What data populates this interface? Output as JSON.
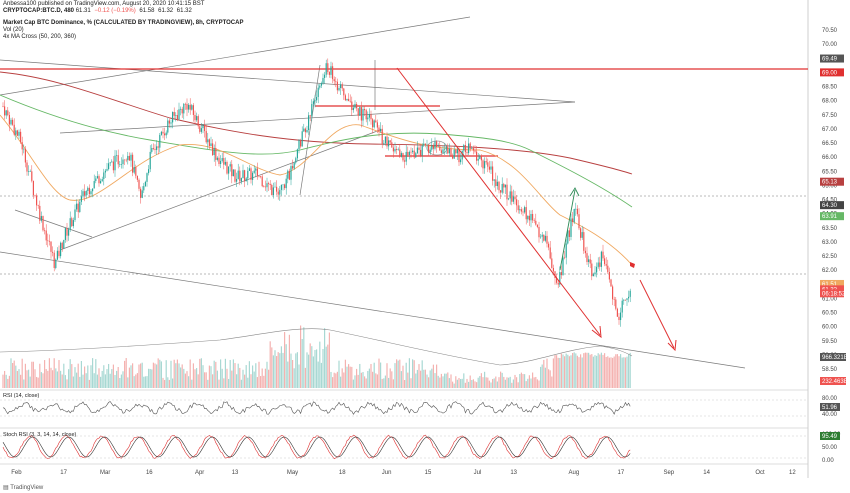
{
  "header": {
    "published": "Anbessa100 published on TradingView.com, August 20, 2020 10:41:15 BST",
    "symbol": "CRYPTOCAP:BTC.D, 480",
    "ohlc": [
      "61.31",
      "−0.12 (−0.19%)",
      "61.58",
      "61.32",
      "61.32"
    ],
    "title": "Market Cap BTC Dominance, % (CALCULATED BY TRADINGVIEW), 8h, CRYPTOCAP",
    "vol": "Vol (20)",
    "ma": "4x MA Cross (50, 200, 360)"
  },
  "panes": {
    "rsi_label": "RSI (14, close)",
    "stoch_label": "Stoch RSI (3, 3, 14, 14, close)"
  },
  "footer": "TradingView",
  "colors": {
    "up": "#26a69a",
    "down": "#ef5350",
    "ma50": "#f0a860",
    "ma200": "#b84040",
    "ma360": "#66b866",
    "red_line": "#e03030",
    "trend": "#888888"
  },
  "chart_data": {
    "type": "candlestick",
    "y_ticks": [
      "70.50",
      "70.00",
      "69.50",
      "69.00",
      "68.50",
      "68.00",
      "67.50",
      "67.00",
      "66.50",
      "66.00",
      "65.50",
      "65.00",
      "64.50",
      "64.00",
      "63.50",
      "63.00",
      "62.50",
      "62.00",
      "61.50",
      "61.00",
      "60.50",
      "60.00",
      "59.50",
      "59.00",
      "58.50"
    ],
    "price_labels": [
      {
        "text": "69.49",
        "value": 69.49,
        "color": "#555555"
      },
      {
        "text": "69.00",
        "value": 69.0,
        "color": "#e03030"
      },
      {
        "text": "65.13",
        "value": 65.13,
        "color": "#b84040"
      },
      {
        "text": "64.30",
        "value": 64.3,
        "color": "#444444"
      },
      {
        "text": "63.91",
        "value": 63.91,
        "color": "#66b866"
      },
      {
        "text": "61.51",
        "value": 61.51,
        "color": "#f0a860"
      },
      {
        "text": "61.32",
        "value": 61.32,
        "color": "#ef5350"
      },
      {
        "text": "06:18:52",
        "value": 61.18,
        "color": "#ef5350"
      }
    ],
    "vol_labels": [
      {
        "text": "966.321B",
        "color": "#555555"
      },
      {
        "text": "232.463B",
        "color": "#ef5350"
      }
    ],
    "rsi": {
      "value": "51.96",
      "ticks": [
        "80.00",
        "40.00"
      ]
    },
    "stoch": {
      "value": "95.49",
      "ticks": [
        "100.00",
        "50.00",
        "0.00"
      ]
    },
    "x_ticks": [
      "Feb",
      "17",
      "Mar",
      "16",
      "Apr",
      "13",
      "May",
      "18",
      "Jun",
      "15",
      "Jul",
      "13",
      "Aug",
      "17",
      "Sep",
      "14",
      "Oct",
      "12"
    ],
    "close_path": [
      [
        "Jan 28",
        67.8
      ],
      [
        "Feb 3",
        66.5
      ],
      [
        "Feb 9",
        64.0
      ],
      [
        "Feb 14",
        62.2
      ],
      [
        "Feb 17",
        63.2
      ],
      [
        "Feb 24",
        64.8
      ],
      [
        "Mar 2",
        65.6
      ],
      [
        "Mar 9",
        66.2
      ],
      [
        "Mar 13",
        64.5
      ],
      [
        "Mar 16",
        66.0
      ],
      [
        "Mar 22",
        67.2
      ],
      [
        "Mar 28",
        67.9
      ],
      [
        "Apr 2",
        67.0
      ],
      [
        "Apr 7",
        66.0
      ],
      [
        "Apr 13",
        65.3
      ],
      [
        "Apr 20",
        65.4
      ],
      [
        "Apr 27",
        64.6
      ],
      [
        "May 1",
        65.5
      ],
      [
        "May 5",
        66.8
      ],
      [
        "May 10",
        68.4
      ],
      [
        "May 13",
        69.2
      ],
      [
        "May 18",
        68.2
      ],
      [
        "May 23",
        67.6
      ],
      [
        "May 28",
        67.2
      ],
      [
        "Jun 1",
        66.5
      ],
      [
        "Jun 6",
        66.0
      ],
      [
        "Jun 12",
        66.2
      ],
      [
        "Jun 18",
        66.4
      ],
      [
        "Jun 24",
        66.0
      ],
      [
        "Jun 28",
        66.3
      ],
      [
        "Jul 3",
        65.8
      ],
      [
        "Jul 9",
        64.9
      ],
      [
        "Jul 14",
        64.4
      ],
      [
        "Jul 19",
        63.7
      ],
      [
        "Jul 24",
        62.9
      ],
      [
        "Jul 27",
        61.2
      ],
      [
        "Jul 30",
        63.0
      ],
      [
        "Aug 2",
        64.2
      ],
      [
        "Aug 5",
        62.7
      ],
      [
        "Aug 8",
        61.8
      ],
      [
        "Aug 11",
        62.6
      ],
      [
        "Aug 14",
        61.0
      ],
      [
        "Aug 16",
        60.4
      ],
      [
        "Aug 18",
        61.0
      ],
      [
        "Aug 20",
        61.32
      ]
    ]
  }
}
